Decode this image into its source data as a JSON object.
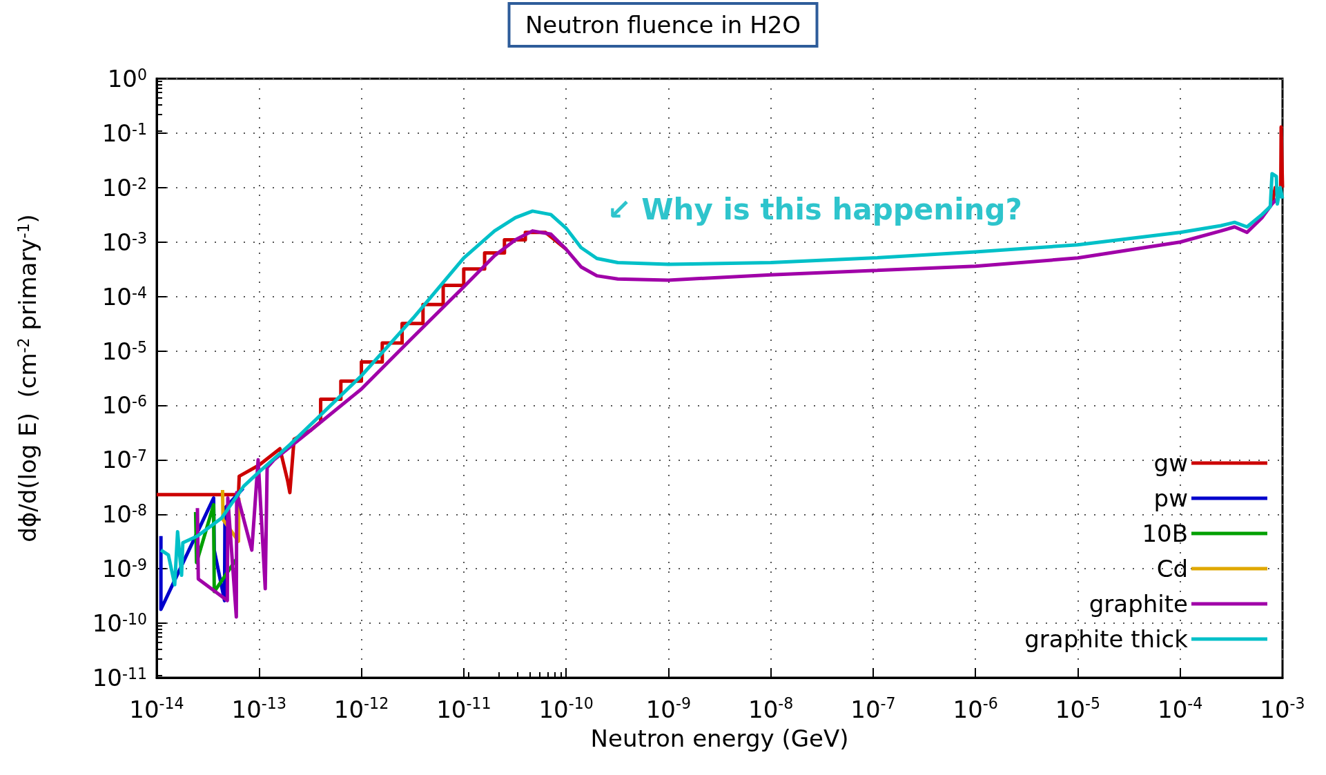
{
  "chart_data": {
    "type": "line",
    "title": "Neutron fluence in H2O",
    "xlabel": "Neutron energy (GeV)",
    "ylabel": "dϕ/d(log E)  (cm$^{-2}$ primary$^{-1}$)",
    "log": "xy",
    "grid": true,
    "legend": "bottom right",
    "xlim": [
      1e-14,
      0.001
    ],
    "ylim": [
      1e-11,
      1
    ],
    "xticks": [
      {
        "value": 1e-14,
        "label": "10$^{-14}$"
      },
      {
        "value": 1e-13,
        "label": "10$^{-13}$"
      },
      {
        "value": 1e-12,
        "label": "10$^{-12}$"
      },
      {
        "value": 1e-11,
        "label": "10$^{-11}$"
      },
      {
        "value": 1e-10,
        "label": "10$^{-10}$"
      },
      {
        "value": 1e-09,
        "label": "10$^{-9}$"
      },
      {
        "value": 1e-08,
        "label": "10$^{-8}$"
      },
      {
        "value": 1e-07,
        "label": "10$^{-7}$"
      },
      {
        "value": 1e-06,
        "label": "10$^{-6}$"
      },
      {
        "value": 1e-05,
        "label": "10$^{-5}$"
      },
      {
        "value": 0.0001,
        "label": "10$^{-4}$"
      },
      {
        "value": 0.001,
        "label": "10$^{-3}$"
      }
    ],
    "yticks": [
      {
        "value": 1e-11,
        "label": "10$^{-11}$"
      },
      {
        "value": 1e-10,
        "label": "10$^{-10}$"
      },
      {
        "value": 1e-09,
        "label": "10$^{-9}$"
      },
      {
        "value": 1e-08,
        "label": "10$^{-8}$"
      },
      {
        "value": 1e-07,
        "label": "10$^{-7}$"
      },
      {
        "value": 1e-06,
        "label": "10$^{-6}$"
      },
      {
        "value": 1e-05,
        "label": "10$^{-5}$"
      },
      {
        "value": 0.0001,
        "label": "10$^{-4}$"
      },
      {
        "value": 0.001,
        "label": "10$^{-3}$"
      },
      {
        "value": 0.01,
        "label": "10$^{-2}$"
      },
      {
        "value": 0.1,
        "label": "10$^{-1}$"
      },
      {
        "value": 1,
        "label": "10$^{0}$"
      }
    ],
    "annotations": [
      "↙ Why is this happening?"
    ],
    "series": [
      {
        "name": "gw",
        "color": "#cc0000",
        "x": [
          1e-14,
          6.3e-14,
          6.4e-14,
          1e-13,
          1.6e-13,
          1.9e-13,
          2e-13,
          2.2e-13,
          3.2e-13,
          4e-13,
          4e-13,
          6.3e-13,
          6.3e-13,
          1e-12,
          1e-12,
          1.6e-12,
          1.6e-12,
          2.5e-12,
          2.5e-12,
          4e-12,
          4e-12,
          6.3e-12,
          6.3e-12,
          1e-11,
          1e-11,
          1.6e-11,
          1.6e-11,
          2.5e-11,
          2.5e-11,
          4e-11,
          4e-11,
          6.3e-11,
          1e-10,
          1.4e-10,
          2e-10,
          3.2e-10,
          1e-09,
          1e-08,
          1e-07,
          1e-06,
          1e-05,
          0.0001,
          0.00025,
          0.00034,
          0.00045,
          0.00063,
          0.00079,
          0.00085,
          0.00096,
          0.00097,
          0.001
        ],
        "values": [
          2.3e-08,
          2.3e-08,
          5e-08,
          8e-08,
          1.6e-07,
          4.2e-08,
          2.5e-08,
          2.4e-07,
          3.5e-07,
          5e-07,
          1.3e-06,
          1.3e-06,
          2.8e-06,
          2.8e-06,
          6.3e-06,
          6.3e-06,
          1.4e-05,
          1.4e-05,
          3.2e-05,
          3.2e-05,
          7.1e-05,
          7.1e-05,
          0.00016,
          0.00016,
          0.00032,
          0.00032,
          0.00063,
          0.00063,
          0.0011,
          0.0011,
          0.0015,
          0.0015,
          0.00074,
          null,
          null,
          null,
          null,
          null,
          null,
          null,
          null,
          null,
          null,
          null,
          null,
          null,
          0.005,
          0.01,
          0.007,
          0.13,
          0.01
        ]
      },
      {
        "name": "pw",
        "color": "#0000cc",
        "x": [
          1.1e-14,
          1.1e-14,
          3.6e-14,
          3.65e-14,
          4.6e-14,
          4.65e-14,
          7e-14
        ],
        "values": [
          4e-09,
          1.8e-10,
          2e-08,
          2.2e-09,
          2.6e-10,
          1.3e-08,
          3e-08
        ]
      },
      {
        "name": "10B",
        "color": "#00a000",
        "x": [
          2.4e-14,
          2.45e-14,
          3.6e-14,
          3.65e-14,
          6e-14
        ],
        "values": [
          1.1e-08,
          1.3e-09,
          1.5e-08,
          3.8e-10,
          1.5e-09
        ]
      },
      {
        "name": "Cd",
        "color": "#e0a800",
        "x": [
          4.4e-14,
          4.45e-14,
          6.3e-14,
          6.35e-14
        ],
        "values": [
          2.8e-08,
          8e-09,
          3.2e-09,
          2e-08
        ]
      },
      {
        "name": "graphite",
        "color": "#a000a8",
        "x": [
          2.5e-14,
          2.55e-14,
          4.9e-14,
          4.95e-14,
          6e-14,
          6.05e-14,
          8.5e-14,
          9.8e-14,
          1.15e-13,
          1.2e-13,
          1.4e-13,
          3.2e-13,
          1e-12,
          3.2e-12,
          1e-11,
          2e-11,
          3.2e-11,
          4.7e-11,
          7.1e-11,
          1e-10,
          1.4e-10,
          2e-10,
          3.2e-10,
          1e-09,
          1e-08,
          1e-07,
          1e-06,
          1e-05,
          0.0001,
          0.00025,
          0.00034,
          0.00045,
          0.00063,
          0.00079,
          0.00089,
          0.00098
        ],
        "values": [
          1.3e-08,
          6.5e-10,
          2.6e-10,
          2e-08,
          1.3e-10,
          2.5e-08,
          2.2e-09,
          1e-07,
          4.3e-10,
          7.2e-08,
          1e-07,
          3.5e-07,
          2e-06,
          1.8e-05,
          0.00015,
          0.00056,
          0.0011,
          0.0016,
          0.0014,
          0.00074,
          0.00035,
          0.00024,
          0.00021,
          0.0002,
          0.00025,
          0.0003,
          0.00036,
          0.00051,
          0.001,
          0.0016,
          0.0019,
          0.0015,
          0.0028,
          0.005,
          0.0063,
          0.008
        ]
      },
      {
        "name": "graphite thick",
        "color": "#00c0c8",
        "x": [
          1.1e-14,
          1.3e-14,
          1.5e-14,
          1.6e-14,
          1.75e-14,
          1.8e-14,
          2.5e-14,
          4.3e-14,
          7.1e-14,
          1e-13,
          2e-13,
          1e-12,
          3.2e-12,
          1e-11,
          2e-11,
          3.2e-11,
          4.7e-11,
          7.1e-11,
          1e-10,
          1.4e-10,
          2e-10,
          3.2e-10,
          1e-09,
          1e-08,
          1e-07,
          1e-06,
          1e-05,
          0.0001,
          0.00025,
          0.00034,
          0.00045,
          0.00063,
          0.00076,
          0.00079,
          0.00087,
          0.00089,
          0.00095,
          0.001
        ],
        "values": [
          2.2e-09,
          1.8e-09,
          5.1e-10,
          4.8e-09,
          7.6e-10,
          3e-09,
          4e-09,
          8.5e-09,
          3.3e-08,
          6e-08,
          1.9e-07,
          3.5e-06,
          4e-05,
          0.00051,
          0.0016,
          0.0028,
          0.0037,
          0.0032,
          0.0018,
          0.00079,
          0.0005,
          0.00042,
          0.00039,
          0.00042,
          0.00051,
          0.00066,
          0.00089,
          0.0015,
          0.002,
          0.0023,
          0.0019,
          0.0032,
          0.0045,
          0.018,
          0.016,
          0.005,
          0.01,
          0.0063
        ]
      }
    ]
  }
}
